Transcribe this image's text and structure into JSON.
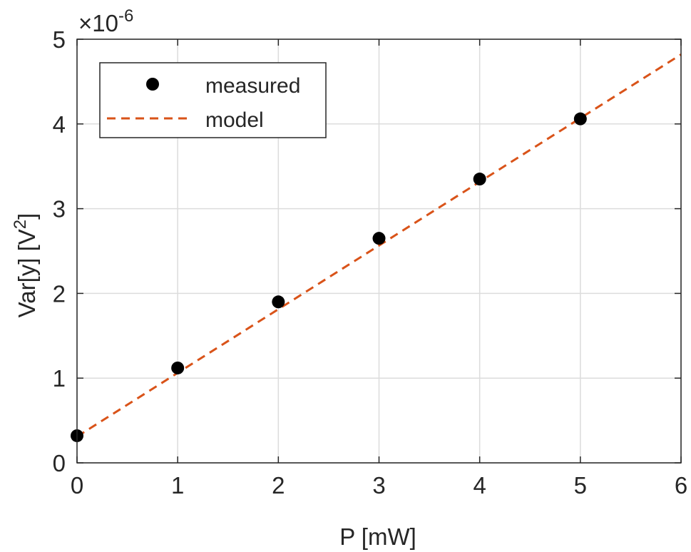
{
  "chart_data": {
    "type": "scatter",
    "xlabel": "P [mW]",
    "ylabel": {
      "main": "Var[y] [V",
      "sup": "2",
      "close": "]"
    },
    "y_exponent": {
      "base": "×10",
      "power": "-6"
    },
    "xlim": [
      0,
      6
    ],
    "ylim": [
      0,
      5
    ],
    "xticks": [
      0,
      1,
      2,
      3,
      4,
      5,
      6
    ],
    "yticks": [
      0,
      1,
      2,
      3,
      4,
      5
    ],
    "xtick_labels": [
      "0",
      "1",
      "2",
      "3",
      "4",
      "5",
      "6"
    ],
    "ytick_labels": [
      "0",
      "1",
      "2",
      "3",
      "4",
      "5"
    ],
    "grid": true,
    "legend_location": "top-left",
    "series": [
      {
        "name": "measured",
        "kind": "markers",
        "color": "#000000",
        "x": [
          0,
          1,
          2,
          3,
          4,
          5
        ],
        "y": [
          0.32,
          1.12,
          1.9,
          2.65,
          3.35,
          4.06
        ]
      },
      {
        "name": "model",
        "kind": "dashed-line",
        "color": "#D95319",
        "x": [
          0,
          6
        ],
        "y": [
          0.31,
          4.82
        ]
      }
    ]
  }
}
